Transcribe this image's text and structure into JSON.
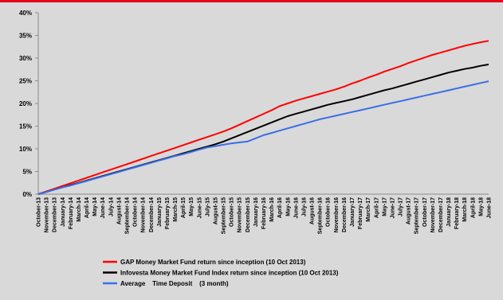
{
  "colors": {
    "background": "#d9d9d9",
    "top_bar": "#e3051b"
  },
  "chart_data": {
    "type": "line",
    "title": "",
    "xlabel": "",
    "ylabel": "",
    "ylim": [
      0,
      40
    ],
    "y_ticks": [
      "0%",
      "5%",
      "10%",
      "15%",
      "20%",
      "25%",
      "30%",
      "35%",
      "40%"
    ],
    "y_unit": "%",
    "grid": false,
    "legend_position": "bottom",
    "x": [
      "October-13",
      "November-13",
      "December-13",
      "January-14",
      "February-14",
      "March-14",
      "April-14",
      "May-14",
      "June-14",
      "July-14",
      "August-14",
      "September-14",
      "October-14",
      "November-14",
      "December-14",
      "January-15",
      "February-15",
      "March-15",
      "April-15",
      "May-15",
      "June-15",
      "July-15",
      "August-15",
      "September-15",
      "October-15",
      "November-15",
      "December-15",
      "January-16",
      "February-16",
      "March-16",
      "April-16",
      "May-16",
      "June-16",
      "July-16",
      "August-16",
      "September-16",
      "October-16",
      "November-16",
      "December-16",
      "January-17",
      "February-17",
      "March-17",
      "April-17",
      "May-17",
      "June-17",
      "July-17",
      "August-17",
      "September-17",
      "October-17",
      "November-17",
      "December-17",
      "January-18",
      "February-18",
      "March-18",
      "April-18",
      "May-18",
      "June-18"
    ],
    "series": [
      {
        "name": "GAP Money Market Fund return since inception (10 Oct 2013)",
        "color": "#ff0000",
        "values": [
          0.0,
          0.6,
          1.2,
          1.8,
          2.4,
          3.0,
          3.6,
          4.2,
          4.8,
          5.4,
          6.0,
          6.6,
          7.2,
          7.8,
          8.4,
          9.0,
          9.6,
          10.2,
          10.8,
          11.4,
          12.0,
          12.6,
          13.2,
          13.8,
          14.5,
          15.3,
          16.1,
          16.9,
          17.7,
          18.5,
          19.4,
          20.0,
          20.6,
          21.1,
          21.6,
          22.1,
          22.6,
          23.1,
          23.7,
          24.4,
          25.0,
          25.7,
          26.3,
          27.0,
          27.6,
          28.2,
          28.9,
          29.5,
          30.1,
          30.7,
          31.2,
          31.7,
          32.2,
          32.7,
          33.1,
          33.5,
          33.8
        ]
      },
      {
        "name": "Infovesta Money Market Fund Index return since inception (10 Oct 2013)",
        "color": "#000000",
        "values": [
          0.0,
          0.5,
          1.0,
          1.5,
          2.0,
          2.5,
          3.0,
          3.5,
          4.0,
          4.5,
          5.0,
          5.5,
          6.0,
          6.5,
          7.0,
          7.5,
          8.0,
          8.5,
          9.0,
          9.5,
          10.0,
          10.5,
          11.0,
          11.6,
          12.3,
          13.0,
          13.7,
          14.4,
          15.1,
          15.8,
          16.5,
          17.2,
          17.7,
          18.2,
          18.7,
          19.2,
          19.7,
          20.1,
          20.5,
          20.9,
          21.4,
          21.9,
          22.4,
          22.9,
          23.3,
          23.8,
          24.3,
          24.8,
          25.3,
          25.8,
          26.3,
          26.8,
          27.2,
          27.6,
          27.9,
          28.3,
          28.6
        ]
      },
      {
        "name": "Average    Time Deposit    (3 month)",
        "color": "#3a6ee8",
        "values": [
          0.0,
          0.5,
          1.0,
          1.5,
          1.9,
          2.4,
          2.9,
          3.4,
          3.9,
          4.4,
          4.9,
          5.4,
          5.9,
          6.4,
          6.9,
          7.4,
          7.9,
          8.4,
          8.8,
          9.3,
          9.8,
          10.3,
          10.6,
          10.9,
          11.2,
          11.4,
          11.6,
          12.3,
          13.0,
          13.5,
          14.0,
          14.5,
          15.0,
          15.5,
          16.0,
          16.5,
          16.9,
          17.3,
          17.7,
          18.1,
          18.5,
          18.9,
          19.3,
          19.7,
          20.1,
          20.5,
          20.9,
          21.3,
          21.7,
          22.1,
          22.5,
          22.9,
          23.3,
          23.7,
          24.1,
          24.5,
          24.9
        ]
      }
    ]
  }
}
